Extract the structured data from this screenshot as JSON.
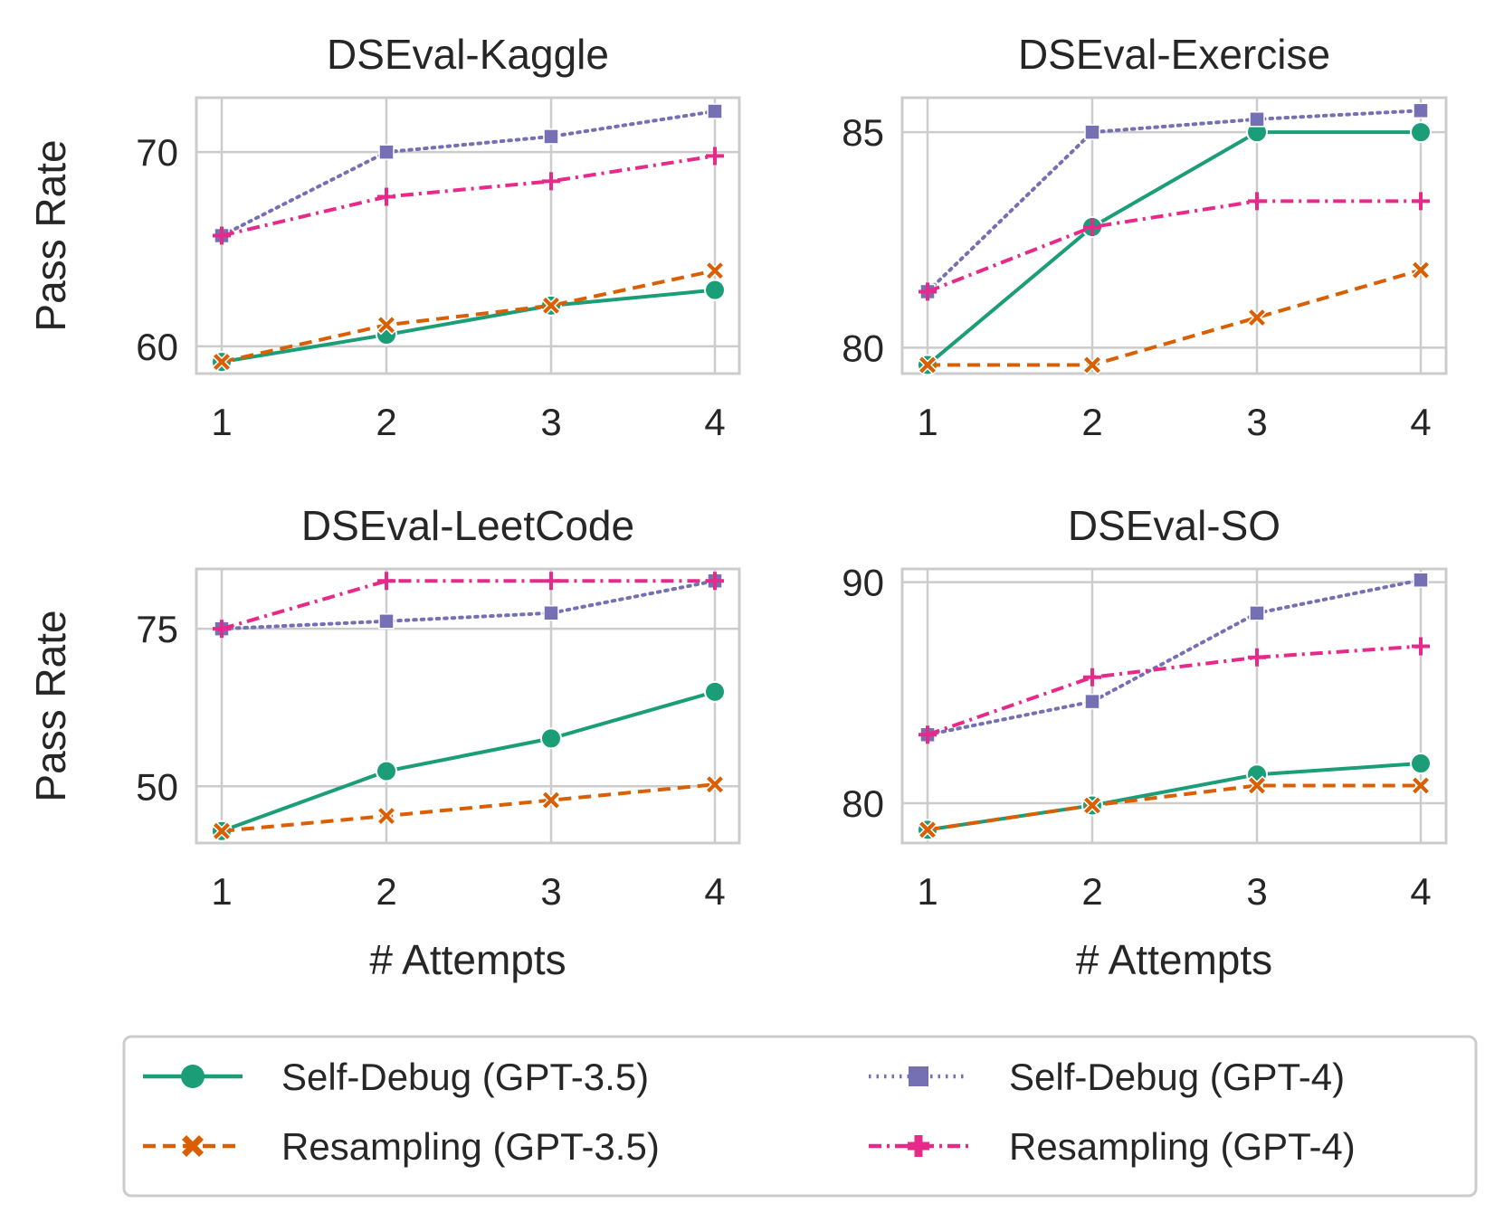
{
  "figure": {
    "shared_xlabel": "# Attempts",
    "shared_ylabel": "Pass Rate"
  },
  "series_styles": [
    {
      "name": "Self-Debug (GPT-3.5)",
      "color": "#1b9e77",
      "dash": "solid",
      "marker": "circle"
    },
    {
      "name": "Resampling (GPT-3.5)",
      "color": "#d95f02",
      "dash": "dashed",
      "marker": "x"
    },
    {
      "name": "Self-Debug (GPT-4)",
      "color": "#7570b3",
      "dash": "dotted",
      "marker": "square"
    },
    {
      "name": "Resampling (GPT-4)",
      "color": "#e7298a",
      "dash": "dashdot",
      "marker": "plus"
    }
  ],
  "chart_data": [
    {
      "type": "line",
      "title": "DSEval-Kaggle",
      "xlabel": "",
      "ylabel": "Pass Rate",
      "x": [
        1,
        2,
        3,
        4
      ],
      "xticks": [
        "1",
        "2",
        "3",
        "4"
      ],
      "yticks": [
        60,
        70
      ],
      "ylim": [
        58.6,
        72.8
      ],
      "grid": true,
      "series": [
        {
          "name": "Self-Debug (GPT-3.5)",
          "values": [
            59.2,
            60.6,
            62.1,
            62.9
          ]
        },
        {
          "name": "Resampling (GPT-3.5)",
          "values": [
            59.2,
            61.1,
            62.1,
            63.9
          ]
        },
        {
          "name": "Self-Debug (GPT-4)",
          "values": [
            65.7,
            70.0,
            70.8,
            72.1
          ]
        },
        {
          "name": "Resampling (GPT-4)",
          "values": [
            65.7,
            67.7,
            68.5,
            69.8
          ]
        }
      ]
    },
    {
      "type": "line",
      "title": "DSEval-Exercise",
      "xlabel": "",
      "ylabel": "",
      "x": [
        1,
        2,
        3,
        4
      ],
      "xticks": [
        "1",
        "2",
        "3",
        "4"
      ],
      "yticks": [
        80,
        85
      ],
      "ylim": [
        79.4,
        85.8
      ],
      "grid": true,
      "series": [
        {
          "name": "Self-Debug (GPT-3.5)",
          "values": [
            79.6,
            82.8,
            85.0,
            85.0
          ]
        },
        {
          "name": "Resampling (GPT-3.5)",
          "values": [
            79.6,
            79.6,
            80.7,
            81.8
          ]
        },
        {
          "name": "Self-Debug (GPT-4)",
          "values": [
            81.3,
            85.0,
            85.3,
            85.5
          ]
        },
        {
          "name": "Resampling (GPT-4)",
          "values": [
            81.3,
            82.8,
            83.4,
            83.4
          ]
        }
      ]
    },
    {
      "type": "line",
      "title": "DSEval-LeetCode",
      "xlabel": "# Attempts",
      "ylabel": "Pass Rate",
      "x": [
        1,
        2,
        3,
        4
      ],
      "xticks": [
        "1",
        "2",
        "3",
        "4"
      ],
      "yticks": [
        50,
        75
      ],
      "ylim": [
        41,
        84.5
      ],
      "grid": true,
      "series": [
        {
          "name": "Self-Debug (GPT-3.5)",
          "values": [
            42.9,
            52.4,
            57.6,
            65.0
          ]
        },
        {
          "name": "Resampling (GPT-3.5)",
          "values": [
            42.9,
            45.3,
            47.8,
            50.3
          ]
        },
        {
          "name": "Self-Debug (GPT-4)",
          "values": [
            75.0,
            76.2,
            77.5,
            82.6
          ]
        },
        {
          "name": "Resampling (GPT-4)",
          "values": [
            75.0,
            82.6,
            82.6,
            82.6
          ]
        }
      ]
    },
    {
      "type": "line",
      "title": "DSEval-SO",
      "xlabel": "# Attempts",
      "ylabel": "",
      "x": [
        1,
        2,
        3,
        4
      ],
      "xticks": [
        "1",
        "2",
        "3",
        "4"
      ],
      "yticks": [
        80,
        90
      ],
      "ylim": [
        78.2,
        90.6
      ],
      "grid": true,
      "series": [
        {
          "name": "Self-Debug (GPT-3.5)",
          "values": [
            78.8,
            79.9,
            81.3,
            81.8
          ]
        },
        {
          "name": "Resampling (GPT-3.5)",
          "values": [
            78.8,
            79.9,
            80.8,
            80.8
          ]
        },
        {
          "name": "Self-Debug (GPT-4)",
          "values": [
            83.1,
            84.6,
            88.6,
            90.1
          ]
        },
        {
          "name": "Resampling (GPT-4)",
          "values": [
            83.1,
            85.7,
            86.6,
            87.1
          ]
        }
      ]
    }
  ],
  "legend": {
    "placement": "bottom-center",
    "columns": 2,
    "entries": [
      "Self-Debug (GPT-3.5)",
      "Resampling (GPT-3.5)",
      "Self-Debug (GPT-4)",
      "Resampling (GPT-4)"
    ]
  }
}
